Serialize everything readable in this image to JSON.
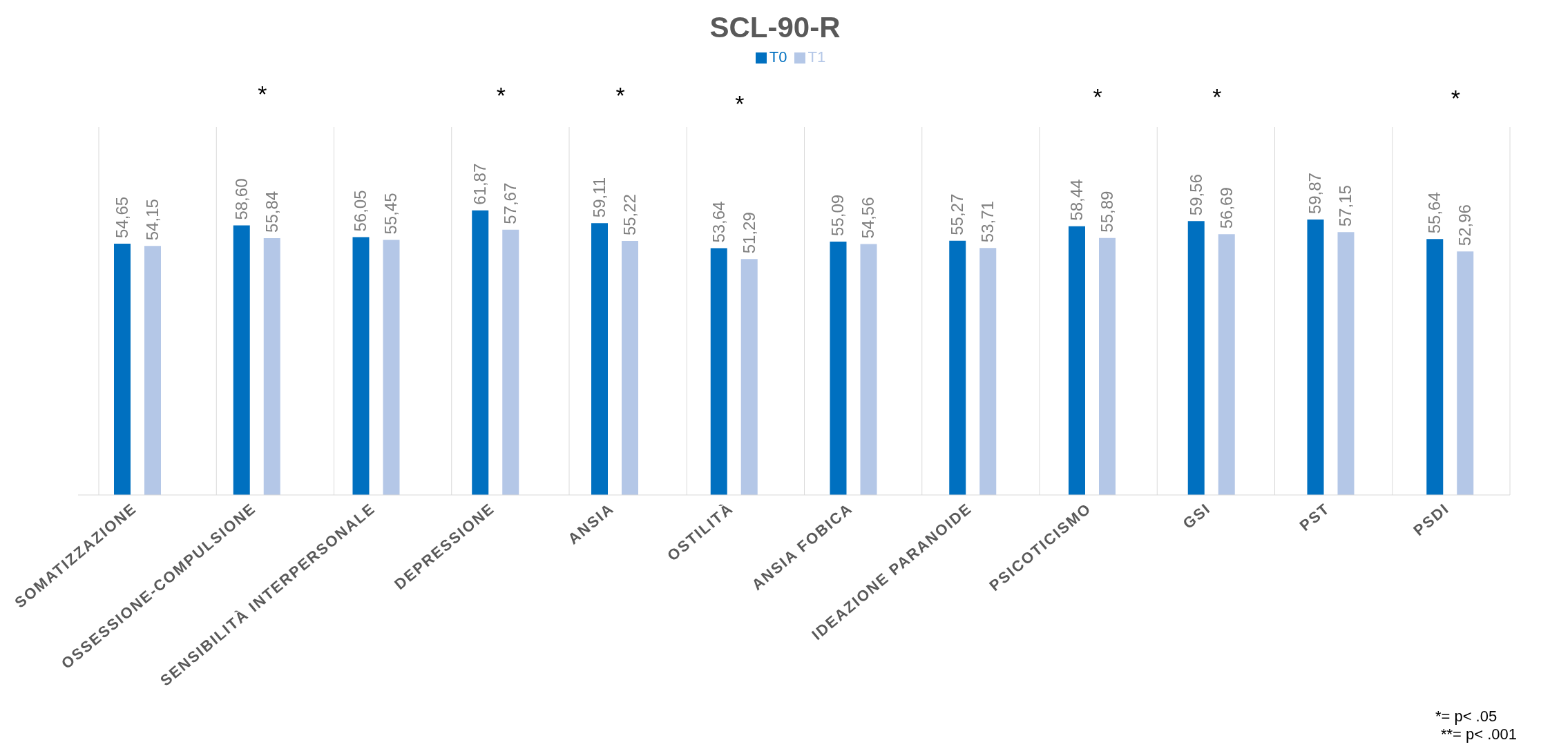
{
  "chart_data": {
    "type": "bar",
    "title": "SCL-90-R",
    "categories": [
      "SOMATIZZAZIONE",
      "OSSESSIONE-COMPULSIONE",
      "SENSIBILITÀ INTERPERSONALE",
      "DEPRESSIONE",
      "ANSIA",
      "OSTILITÀ",
      "ANSIA FOBICA",
      "IDEAZIONE PARANOIDE",
      "PSICOTICISMO",
      "GSI",
      "PST",
      "PSDI"
    ],
    "series": [
      {
        "name": "T0",
        "color": "#0070c0",
        "values": [
          54.65,
          58.6,
          56.05,
          61.87,
          59.11,
          53.64,
          55.09,
          55.27,
          58.44,
          59.56,
          59.87,
          55.64
        ],
        "value_labels": [
          "54,65",
          "58,60",
          "56,05",
          "61,87",
          "59,11",
          "53,64",
          "55,09",
          "55,27",
          "58,44",
          "59,56",
          "59,87",
          "55,64"
        ]
      },
      {
        "name": "T1",
        "color": "#b4c7e7",
        "values": [
          54.15,
          55.84,
          55.45,
          57.67,
          55.22,
          51.29,
          54.56,
          53.71,
          55.89,
          56.69,
          57.15,
          52.96
        ],
        "value_labels": [
          "54,15",
          "55,84",
          "55,45",
          "57,67",
          "55,22",
          "51,29",
          "54,56",
          "53,71",
          "55,89",
          "56,69",
          "57,15",
          "52,96"
        ]
      }
    ],
    "annotations": [
      "*",
      "*",
      "*",
      "*",
      "*",
      "*",
      "*",
      "*= p< .05",
      "**= p< .001"
    ],
    "grid": "x",
    "legend": "top"
  }
}
